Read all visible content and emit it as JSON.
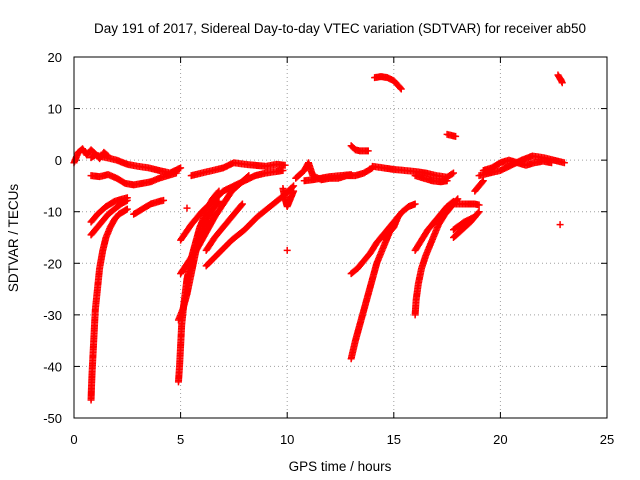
{
  "chart_data": {
    "type": "scatter",
    "title": "Day 191 of 2017, Sidereal Day-to-day VTEC variation (SDTVAR) for receiver ab50",
    "xlabel": "GPS time / hours",
    "ylabel": "SDTVAR / TECUs",
    "xlim": [
      0,
      25
    ],
    "ylim": [
      -50,
      20
    ],
    "xticks": [
      0,
      5,
      10,
      15,
      20,
      25
    ],
    "yticks": [
      -50,
      -40,
      -30,
      -20,
      -10,
      0,
      10,
      20
    ],
    "grid": true,
    "marker": "+",
    "color": "#ff0000",
    "series": [
      {
        "name": "noise-start",
        "points": [
          [
            0,
            -0.5
          ],
          [
            0.2,
            1.5
          ],
          [
            0.4,
            2.2
          ],
          [
            0.6,
            1.0
          ],
          [
            0.8,
            2.0
          ],
          [
            1.0,
            1.2
          ],
          [
            1.2,
            0.3
          ],
          [
            1.4,
            1.5
          ],
          [
            1.6,
            0.8
          ]
        ]
      },
      {
        "name": "band-0-2",
        "points": [
          [
            0.8,
            0.5
          ],
          [
            1.0,
            1.0
          ],
          [
            1.5,
            0.5
          ],
          [
            2.0,
            0.0
          ],
          [
            2.5,
            -0.8
          ],
          [
            3.0,
            -1.2
          ],
          [
            3.5,
            -1.5
          ],
          [
            4.0,
            -2.0
          ],
          [
            4.5,
            -2.5
          ],
          [
            5.0,
            -1.5
          ]
        ]
      },
      {
        "name": "band-1-4",
        "points": [
          [
            0.8,
            -3.0
          ],
          [
            1.2,
            -3.2
          ],
          [
            1.6,
            -2.8
          ],
          [
            2.0,
            -3.5
          ],
          [
            2.4,
            -4.5
          ],
          [
            2.8,
            -4.8
          ],
          [
            3.2,
            -4.5
          ],
          [
            3.6,
            -4.2
          ],
          [
            4.0,
            -3.5
          ],
          [
            4.4,
            -3.0
          ],
          [
            4.8,
            -2.5
          ]
        ]
      },
      {
        "name": "arc-a1",
        "points": [
          [
            0.8,
            -46.5
          ],
          [
            0.82,
            -44
          ],
          [
            0.85,
            -41
          ],
          [
            0.9,
            -37
          ],
          [
            0.95,
            -33
          ],
          [
            1.0,
            -29
          ],
          [
            1.1,
            -25
          ],
          [
            1.2,
            -21
          ],
          [
            1.35,
            -17.5
          ],
          [
            1.5,
            -15
          ],
          [
            1.7,
            -13
          ],
          [
            1.9,
            -11.5
          ],
          [
            2.1,
            -10.5
          ],
          [
            2.3,
            -10
          ],
          [
            2.5,
            -9.5
          ]
        ]
      },
      {
        "name": "arc-a2",
        "points": [
          [
            0.8,
            -14.5
          ],
          [
            1.0,
            -13.5
          ],
          [
            1.3,
            -12
          ],
          [
            1.6,
            -10.5
          ],
          [
            1.9,
            -9.5
          ],
          [
            2.2,
            -8.5
          ],
          [
            2.5,
            -7.8
          ]
        ]
      },
      {
        "name": "arc-a3",
        "points": [
          [
            0.8,
            -12
          ],
          [
            1.1,
            -10.5
          ],
          [
            1.5,
            -9
          ],
          [
            1.9,
            -8
          ],
          [
            2.3,
            -7.5
          ],
          [
            2.5,
            -7.3
          ]
        ]
      },
      {
        "name": "arc-a4",
        "points": [
          [
            2.8,
            -10.5
          ],
          [
            3.2,
            -9.5
          ],
          [
            3.6,
            -8.5
          ],
          [
            4.0,
            -8
          ],
          [
            4.2,
            -7.8
          ]
        ]
      },
      {
        "name": "arc-b1",
        "points": [
          [
            4.9,
            -43
          ],
          [
            4.95,
            -40
          ],
          [
            5.0,
            -36
          ],
          [
            5.05,
            -32
          ],
          [
            5.15,
            -28
          ],
          [
            5.3,
            -23
          ],
          [
            5.5,
            -19
          ],
          [
            5.7,
            -16
          ],
          [
            5.9,
            -13
          ],
          [
            6.1,
            -11
          ],
          [
            6.3,
            -9
          ],
          [
            6.5,
            -7.5
          ],
          [
            6.8,
            -6
          ]
        ]
      },
      {
        "name": "arc-b2",
        "points": [
          [
            4.9,
            -31
          ],
          [
            5.1,
            -29
          ],
          [
            5.3,
            -26
          ],
          [
            5.5,
            -22
          ],
          [
            5.7,
            -18
          ],
          [
            5.9,
            -15
          ],
          [
            6.1,
            -13
          ],
          [
            6.3,
            -11
          ],
          [
            6.5,
            -9.5
          ],
          [
            6.8,
            -8
          ]
        ]
      },
      {
        "name": "arc-b3",
        "points": [
          [
            5.0,
            -22
          ],
          [
            5.4,
            -19.5
          ],
          [
            5.8,
            -17
          ],
          [
            6.2,
            -14
          ],
          [
            6.6,
            -11
          ],
          [
            7.0,
            -8.5
          ],
          [
            7.4,
            -6
          ],
          [
            7.8,
            -4.5
          ],
          [
            8.2,
            -3
          ]
        ]
      },
      {
        "name": "arc-b4",
        "points": [
          [
            5.0,
            -15.5
          ],
          [
            5.5,
            -12.5
          ],
          [
            6.0,
            -10
          ],
          [
            6.5,
            -8
          ],
          [
            7.0,
            -6
          ],
          [
            7.5,
            -5
          ],
          [
            8.0,
            -4
          ],
          [
            8.5,
            -3
          ],
          [
            9.0,
            -2.5
          ],
          [
            9.5,
            -2.2
          ],
          [
            9.8,
            -2
          ]
        ]
      },
      {
        "name": "arc-b5",
        "points": [
          [
            6.2,
            -20.5
          ],
          [
            6.8,
            -18
          ],
          [
            7.4,
            -15.5
          ],
          [
            8.0,
            -13.5
          ],
          [
            8.6,
            -11
          ],
          [
            9.2,
            -9
          ],
          [
            9.8,
            -7
          ],
          [
            10.3,
            -5
          ]
        ]
      },
      {
        "name": "arc-b6",
        "points": [
          [
            6.2,
            -17.5
          ],
          [
            6.6,
            -15
          ],
          [
            7.0,
            -13
          ],
          [
            7.4,
            -11
          ],
          [
            7.7,
            -9.5
          ],
          [
            7.9,
            -8.5
          ]
        ]
      },
      {
        "name": "band-5-10",
        "points": [
          [
            5.5,
            -3
          ],
          [
            6.0,
            -2.5
          ],
          [
            6.5,
            -2
          ],
          [
            7.0,
            -1.5
          ],
          [
            7.5,
            -0.5
          ],
          [
            8.0,
            -0.8
          ],
          [
            8.5,
            -1
          ],
          [
            9.0,
            -1.2
          ],
          [
            9.5,
            -0.8
          ],
          [
            9.9,
            -1
          ]
        ]
      },
      {
        "name": "dip-10",
        "points": [
          [
            9.8,
            -5.5
          ],
          [
            9.9,
            -7.5
          ],
          [
            10.0,
            -9
          ],
          [
            10.1,
            -8
          ],
          [
            10.2,
            -7
          ],
          [
            10.3,
            -6
          ]
        ]
      },
      {
        "name": "outlier-5",
        "points": [
          [
            5.3,
            -9.3
          ]
        ]
      },
      {
        "name": "outlier-10",
        "points": [
          [
            10.0,
            -17.5
          ]
        ]
      },
      {
        "name": "band-10-13",
        "points": [
          [
            10.4,
            -3.5
          ],
          [
            10.8,
            -2
          ],
          [
            11.0,
            -0.5
          ],
          [
            11.2,
            -3
          ],
          [
            11.6,
            -3.8
          ],
          [
            12.0,
            -3.5
          ],
          [
            12.4,
            -3.5
          ],
          [
            12.8,
            -3
          ],
          [
            13.2,
            -3
          ],
          [
            13.6,
            -2.5
          ],
          [
            14.0,
            -1.5
          ]
        ]
      },
      {
        "name": "band-10-13b",
        "points": [
          [
            10.8,
            -4
          ],
          [
            11.2,
            -3.8
          ],
          [
            11.6,
            -3.5
          ],
          [
            12.0,
            -3.2
          ],
          [
            12.5,
            -3
          ],
          [
            13.0,
            -2.8
          ]
        ]
      },
      {
        "name": "short-13",
        "points": [
          [
            13.0,
            2.8
          ],
          [
            13.2,
            2.0
          ],
          [
            13.4,
            1.8
          ],
          [
            13.6,
            1.8
          ],
          [
            13.8,
            1.8
          ]
        ]
      },
      {
        "name": "band-14-18",
        "points": [
          [
            14.0,
            -1.2
          ],
          [
            14.5,
            -1.5
          ],
          [
            15.0,
            -1.8
          ],
          [
            15.5,
            -2.0
          ],
          [
            16.0,
            -2.2
          ],
          [
            16.5,
            -2.5
          ],
          [
            17.0,
            -3
          ],
          [
            17.5,
            -3.3
          ],
          [
            17.8,
            -2.5
          ]
        ]
      },
      {
        "name": "band-16-17",
        "points": [
          [
            16.0,
            -3.0
          ],
          [
            16.4,
            -3.5
          ],
          [
            16.8,
            -4.0
          ],
          [
            17.2,
            -4.2
          ],
          [
            17.5,
            -4.0
          ]
        ]
      },
      {
        "name": "arc-c1",
        "points": [
          [
            13.0,
            -38.5
          ],
          [
            13.2,
            -35
          ],
          [
            13.4,
            -32
          ],
          [
            13.6,
            -29
          ],
          [
            13.8,
            -26
          ],
          [
            14.0,
            -23
          ],
          [
            14.2,
            -20
          ],
          [
            14.4,
            -18
          ],
          [
            14.6,
            -16
          ],
          [
            14.8,
            -14
          ],
          [
            15.0,
            -13
          ],
          [
            15.2,
            -11
          ]
        ]
      },
      {
        "name": "arc-c2",
        "points": [
          [
            13.0,
            -22
          ],
          [
            13.3,
            -21
          ],
          [
            13.6,
            -19.5
          ],
          [
            13.9,
            -18
          ],
          [
            14.2,
            -16
          ],
          [
            14.5,
            -14.5
          ],
          [
            14.8,
            -13
          ],
          [
            15.1,
            -11.5
          ],
          [
            15.4,
            -10
          ],
          [
            15.7,
            -9
          ],
          [
            16.0,
            -8.5
          ]
        ]
      },
      {
        "name": "arc-c3",
        "points": [
          [
            14.1,
            16
          ],
          [
            14.4,
            16.2
          ],
          [
            14.7,
            16
          ],
          [
            15.0,
            15.4
          ],
          [
            15.2,
            14.5
          ],
          [
            15.35,
            13.8
          ]
        ]
      },
      {
        "name": "arc-d1",
        "points": [
          [
            16.0,
            -30
          ],
          [
            16.05,
            -27
          ],
          [
            16.15,
            -24
          ],
          [
            16.3,
            -21
          ],
          [
            16.5,
            -18.5
          ],
          [
            16.7,
            -16.5
          ],
          [
            16.9,
            -14.5
          ],
          [
            17.1,
            -12.5
          ],
          [
            17.4,
            -10.5
          ],
          [
            17.7,
            -9
          ],
          [
            18.0,
            -7.5
          ]
        ]
      },
      {
        "name": "arc-d2",
        "points": [
          [
            16.0,
            -17.5
          ],
          [
            16.3,
            -15.5
          ],
          [
            16.6,
            -13.5
          ],
          [
            16.9,
            -12
          ],
          [
            17.2,
            -10.5
          ],
          [
            17.5,
            -9
          ],
          [
            17.8,
            -8
          ]
        ]
      },
      {
        "name": "short-17",
        "points": [
          [
            17.5,
            5
          ],
          [
            17.7,
            4.8
          ],
          [
            17.9,
            4.6
          ]
        ]
      },
      {
        "name": "arc-e1",
        "points": [
          [
            17.8,
            -15
          ],
          [
            18.2,
            -13.5
          ],
          [
            18.6,
            -12
          ],
          [
            19.0,
            -10
          ]
        ]
      },
      {
        "name": "arc-e2",
        "points": [
          [
            17.8,
            -13.5
          ],
          [
            18.3,
            -12
          ],
          [
            18.8,
            -11
          ]
        ]
      },
      {
        "name": "arc-e3",
        "points": [
          [
            17.8,
            -8.5
          ],
          [
            18.3,
            -8.5
          ],
          [
            18.8,
            -8.5
          ],
          [
            19.0,
            -8.7
          ]
        ]
      },
      {
        "name": "short-19",
        "points": [
          [
            18.8,
            -6
          ],
          [
            19.0,
            -5
          ],
          [
            19.2,
            -4
          ]
        ]
      },
      {
        "name": "band-19-23",
        "points": [
          [
            19.0,
            -3
          ],
          [
            19.5,
            -2.5
          ],
          [
            20.0,
            -2
          ],
          [
            20.5,
            -1
          ],
          [
            21.0,
            0
          ],
          [
            21.5,
            0.8
          ],
          [
            22.0,
            0.5
          ],
          [
            22.5,
            0
          ],
          [
            23.0,
            -0.5
          ]
        ]
      },
      {
        "name": "band-19-23b",
        "points": [
          [
            19.2,
            -2
          ],
          [
            19.6,
            -1.5
          ],
          [
            20.0,
            -0.5
          ],
          [
            20.4,
            0
          ],
          [
            20.8,
            -0.5
          ],
          [
            21.2,
            -1
          ],
          [
            21.6,
            -0.5
          ],
          [
            22.0,
            -0.2
          ],
          [
            22.4,
            -0.5
          ]
        ]
      },
      {
        "name": "short-23",
        "points": [
          [
            22.7,
            16.5
          ],
          [
            22.8,
            15.8
          ],
          [
            22.85,
            15.5
          ],
          [
            22.9,
            15
          ]
        ]
      },
      {
        "name": "outlier-23",
        "points": [
          [
            22.8,
            -12.5
          ]
        ]
      }
    ]
  }
}
